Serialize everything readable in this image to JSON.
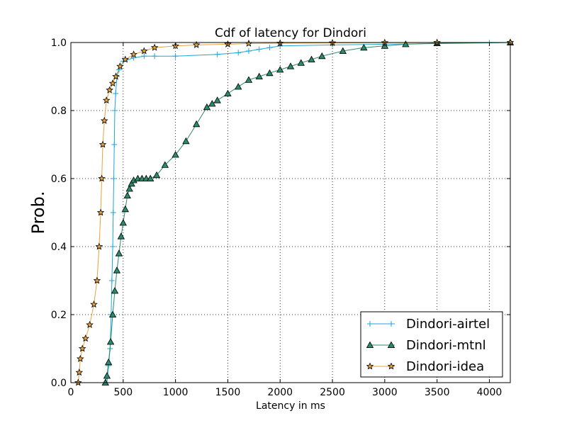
{
  "chart_data": {
    "type": "line",
    "title": "Cdf of latency for Dindori",
    "xlabel": "Latency in ms",
    "ylabel": "Prob.",
    "xlim": [
      0,
      4200
    ],
    "ylim": [
      0,
      1.0
    ],
    "xticks": [
      0,
      500,
      1000,
      1500,
      2000,
      2500,
      3000,
      3500,
      4000
    ],
    "yticks": [
      0.0,
      0.2,
      0.4,
      0.6,
      0.8,
      1.0
    ],
    "xtick_labels": [
      "0",
      "500",
      "1000",
      "1500",
      "2000",
      "2500",
      "3000",
      "3500",
      "4000"
    ],
    "ytick_labels": [
      "0.0",
      "0.2",
      "0.4",
      "0.6",
      "0.8",
      "1.0"
    ],
    "grid": true,
    "legend_position": "lower-right",
    "series": [
      {
        "name": "Dindori-airtel",
        "color": "#1aa7d6",
        "marker": "plus",
        "x": [
          345,
          360,
          375,
          385,
          392,
          400,
          405,
          410,
          415,
          420,
          428,
          440,
          460,
          500,
          600,
          700,
          800,
          1000,
          1400,
          1600,
          1700,
          1800,
          1900,
          2000,
          2500,
          3000,
          3500,
          4000,
          4200
        ],
        "y": [
          0.0,
          0.05,
          0.1,
          0.2,
          0.3,
          0.4,
          0.5,
          0.6,
          0.7,
          0.8,
          0.85,
          0.9,
          0.92,
          0.945,
          0.955,
          0.96,
          0.96,
          0.96,
          0.965,
          0.97,
          0.975,
          0.98,
          0.985,
          0.99,
          0.993,
          0.995,
          0.997,
          0.999,
          1.0
        ]
      },
      {
        "name": "Dindori-mtnl",
        "color": "#2a8a6a",
        "marker": "triangle",
        "x": [
          330,
          345,
          360,
          380,
          400,
          420,
          440,
          460,
          480,
          500,
          520,
          540,
          560,
          580,
          600,
          640,
          680,
          720,
          760,
          820,
          900,
          1000,
          1100,
          1200,
          1300,
          1350,
          1400,
          1500,
          1600,
          1700,
          1800,
          1900,
          2000,
          2100,
          2200,
          2300,
          2400,
          2600,
          2800,
          3000,
          3200,
          3500,
          4200
        ],
        "y": [
          0.0,
          0.02,
          0.06,
          0.12,
          0.2,
          0.27,
          0.33,
          0.38,
          0.43,
          0.47,
          0.51,
          0.55,
          0.57,
          0.585,
          0.595,
          0.6,
          0.6,
          0.6,
          0.6,
          0.61,
          0.64,
          0.67,
          0.71,
          0.76,
          0.81,
          0.82,
          0.83,
          0.85,
          0.87,
          0.89,
          0.9,
          0.91,
          0.92,
          0.93,
          0.94,
          0.95,
          0.96,
          0.975,
          0.985,
          0.99,
          0.995,
          0.998,
          1.0
        ]
      },
      {
        "name": "Dindori-idea",
        "color": "#e8a33a",
        "marker": "star",
        "x": [
          70,
          80,
          90,
          110,
          140,
          180,
          220,
          250,
          270,
          285,
          295,
          305,
          320,
          340,
          370,
          400,
          430,
          470,
          520,
          600,
          700,
          800,
          1000,
          1200,
          1500,
          1700,
          2000,
          2500,
          3000,
          3500,
          4200
        ],
        "y": [
          0.0,
          0.03,
          0.07,
          0.1,
          0.13,
          0.17,
          0.23,
          0.3,
          0.4,
          0.5,
          0.6,
          0.7,
          0.77,
          0.83,
          0.86,
          0.88,
          0.9,
          0.93,
          0.95,
          0.965,
          0.975,
          0.985,
          0.99,
          0.993,
          0.995,
          0.997,
          0.998,
          0.999,
          0.9995,
          1.0,
          1.0
        ]
      }
    ]
  }
}
